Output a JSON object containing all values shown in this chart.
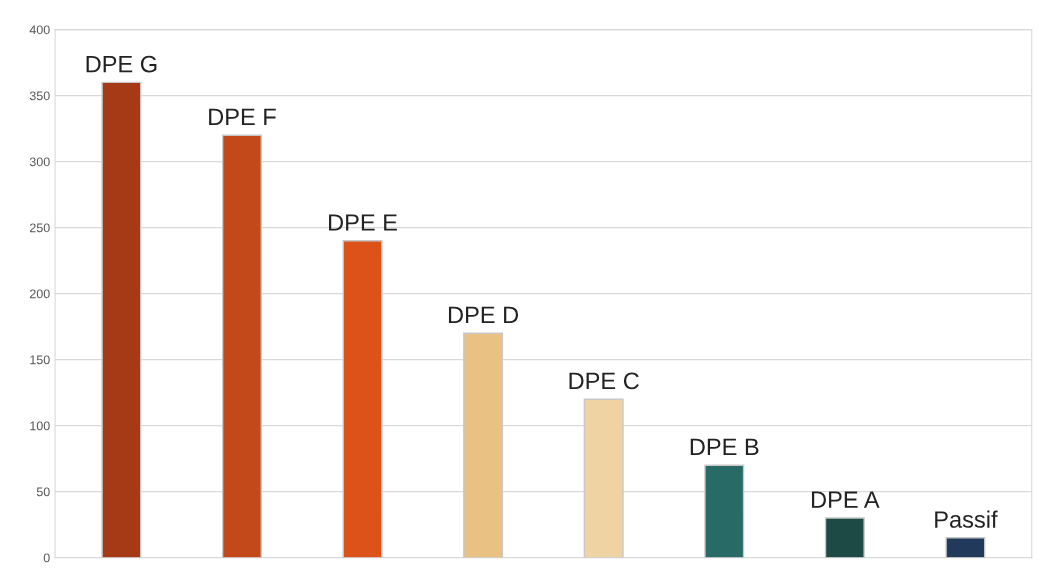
{
  "chart_data": {
    "type": "bar",
    "categories": [
      "DPE G",
      "DPE F",
      "DPE E",
      "DPE D",
      "DPE C",
      "DPE B",
      "DPE A",
      "Passif"
    ],
    "values": [
      360,
      320,
      240,
      170,
      120,
      70,
      30,
      15
    ],
    "colors": [
      "#a63a16",
      "#c4491a",
      "#dc5219",
      "#e9c283",
      "#efd3a2",
      "#286b66",
      "#1d4a44",
      "#213a5c"
    ],
    "ylim": [
      0,
      400
    ],
    "yticks": [
      0,
      50,
      100,
      150,
      200,
      250,
      300,
      350,
      400
    ],
    "grid": "y"
  }
}
